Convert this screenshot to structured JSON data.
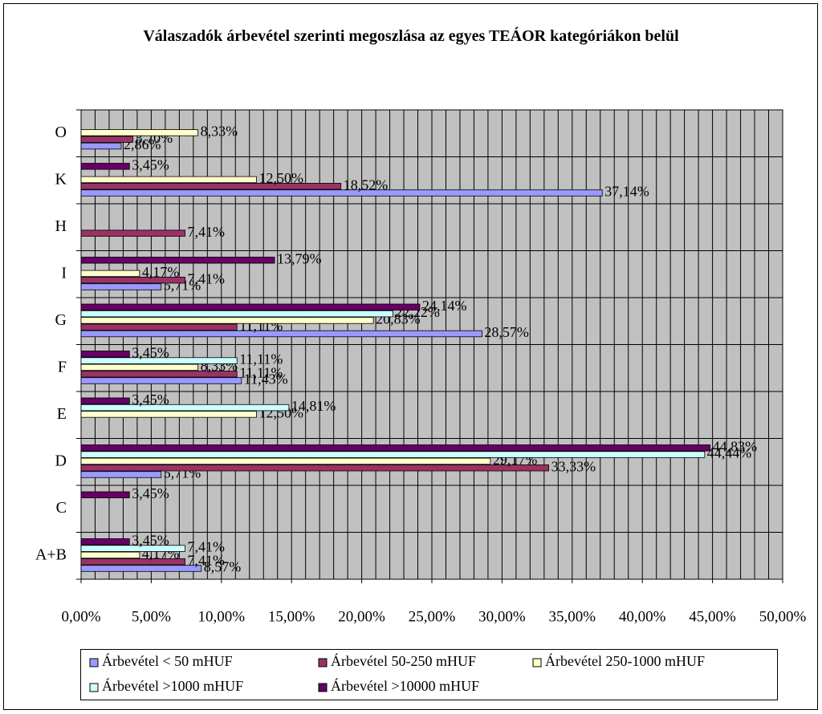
{
  "chart_data": {
    "type": "hbar",
    "title": "Válaszadók árbevétel szerinti megoszlása az egyes TEÁOR kategóriákon belül",
    "categories": [
      "A+B",
      "C",
      "D",
      "E",
      "F",
      "G",
      "I",
      "H",
      "K",
      "O"
    ],
    "series": [
      {
        "name": "Árbevétel < 50 mHUF",
        "color": "#9999FF",
        "values": [
          8.57,
          null,
          5.71,
          null,
          11.43,
          28.57,
          5.71,
          null,
          37.14,
          2.86
        ],
        "value_labels": [
          "8,57%",
          null,
          "5,71%",
          null,
          "11,43%",
          "28,57%",
          "5,71%",
          null,
          "37,14%",
          "2,86%"
        ]
      },
      {
        "name": "Árbevétel 50-250 mHUF",
        "color": "#993366",
        "values": [
          7.41,
          null,
          33.33,
          null,
          11.11,
          11.11,
          7.41,
          7.41,
          18.52,
          3.7
        ],
        "value_labels": [
          "7,41%",
          null,
          "33,33%",
          null,
          "11,11%",
          "11,11%",
          "7,41%",
          "7,41%",
          "18,52%",
          "3,70%"
        ]
      },
      {
        "name": "Árbevétel 250-1000 mHUF",
        "color": "#FFFFCC",
        "values": [
          4.17,
          null,
          29.17,
          12.5,
          8.33,
          20.83,
          4.17,
          null,
          12.5,
          8.33
        ],
        "value_labels": [
          "4,17%",
          null,
          "29,17%",
          "12,50%",
          "8,33%",
          "20,83%",
          "4,17%",
          null,
          "12,50%",
          "8,33%"
        ]
      },
      {
        "name": "Árbevétel >1000 mHUF",
        "color": "#CCFFFF",
        "values": [
          7.41,
          null,
          44.44,
          14.81,
          11.11,
          22.22,
          null,
          null,
          null,
          null
        ],
        "value_labels": [
          "7,41%",
          null,
          "44,44%",
          "14,81%",
          "11,11%",
          "22,22%",
          null,
          null,
          null,
          null
        ]
      },
      {
        "name": "Árbevétel >10000 mHUF",
        "color": "#660066",
        "values": [
          3.45,
          3.45,
          44.83,
          3.45,
          3.45,
          24.14,
          13.79,
          null,
          3.45,
          null
        ],
        "value_labels": [
          "3,45%",
          "3,45%",
          "44,83%",
          "3,45%",
          "3,45%",
          "24,14%",
          "13,79%",
          null,
          "3,45%",
          null
        ]
      }
    ],
    "xlim": [
      0,
      50
    ],
    "xticks": [
      {
        "value": 0,
        "label": "0,00%"
      },
      {
        "value": 5,
        "label": "5,00%"
      },
      {
        "value": 10,
        "label": "10,00%"
      },
      {
        "value": 15,
        "label": "15,00%"
      },
      {
        "value": 20,
        "label": "20,00%"
      },
      {
        "value": 25,
        "label": "25,00%"
      },
      {
        "value": 30,
        "label": "30,00%"
      },
      {
        "value": 35,
        "label": "35,00%"
      },
      {
        "value": 40,
        "label": "40,00%"
      },
      {
        "value": 45,
        "label": "45,00%"
      },
      {
        "value": 50,
        "label": "50,00%"
      }
    ],
    "grid": true,
    "plot_background": "#C0C0C0",
    "legend": "bottom"
  }
}
